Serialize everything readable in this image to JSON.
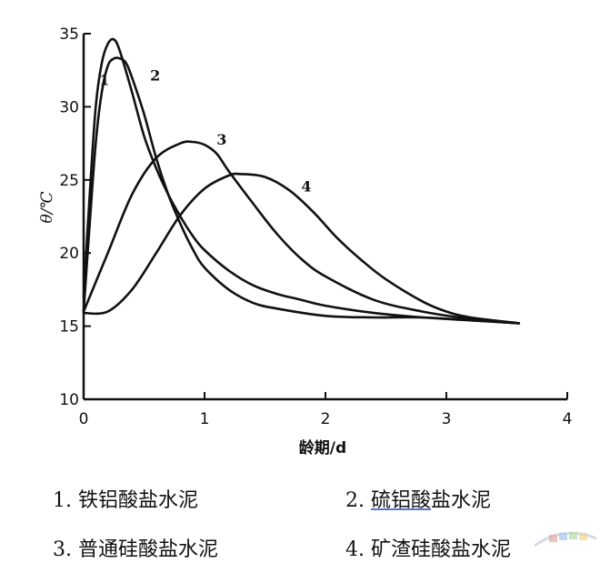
{
  "chart_data": {
    "type": "line",
    "xlabel": "龄期/d",
    "ylabel": "θ/℃",
    "xlim": [
      0,
      4
    ],
    "ylim": [
      10,
      35
    ],
    "x_ticks": [
      "0",
      "1",
      "2",
      "3",
      "4"
    ],
    "y_ticks": [
      "10",
      "15",
      "20",
      "25",
      "30",
      "35"
    ],
    "grid": false,
    "series": [
      {
        "name": "1",
        "points": [
          [
            0,
            17
          ],
          [
            0.05,
            24
          ],
          [
            0.1,
            30
          ],
          [
            0.15,
            33
          ],
          [
            0.2,
            34.3
          ],
          [
            0.25,
            34.6
          ],
          [
            0.3,
            33.8
          ],
          [
            0.4,
            31
          ],
          [
            0.5,
            28
          ],
          [
            0.6,
            25.8
          ],
          [
            0.7,
            24
          ],
          [
            0.8,
            22.5
          ],
          [
            0.9,
            21.2
          ],
          [
            1.0,
            20.2
          ],
          [
            1.2,
            18.8
          ],
          [
            1.4,
            17.8
          ],
          [
            1.6,
            17.2
          ],
          [
            1.8,
            16.8
          ],
          [
            2.0,
            16.4
          ],
          [
            2.4,
            15.9
          ],
          [
            2.8,
            15.6
          ],
          [
            3.2,
            15.4
          ],
          [
            3.6,
            15.2
          ]
        ]
      },
      {
        "name": "2",
        "points": [
          [
            0,
            16
          ],
          [
            0.05,
            22
          ],
          [
            0.1,
            27.5
          ],
          [
            0.15,
            31
          ],
          [
            0.2,
            32.8
          ],
          [
            0.25,
            33.3
          ],
          [
            0.3,
            33.3
          ],
          [
            0.35,
            33
          ],
          [
            0.4,
            32
          ],
          [
            0.5,
            29.5
          ],
          [
            0.6,
            26.5
          ],
          [
            0.7,
            24
          ],
          [
            0.8,
            22
          ],
          [
            0.9,
            20.3
          ],
          [
            1.0,
            19
          ],
          [
            1.2,
            17.5
          ],
          [
            1.4,
            16.6
          ],
          [
            1.6,
            16.2
          ],
          [
            2.0,
            15.7
          ],
          [
            2.4,
            15.6
          ],
          [
            2.8,
            15.6
          ],
          [
            3.2,
            15.4
          ],
          [
            3.6,
            15.2
          ]
        ]
      },
      {
        "name": "3",
        "points": [
          [
            0,
            16
          ],
          [
            0.2,
            20
          ],
          [
            0.4,
            24
          ],
          [
            0.6,
            26.5
          ],
          [
            0.8,
            27.5
          ],
          [
            0.9,
            27.6
          ],
          [
            1.0,
            27.4
          ],
          [
            1.1,
            26.8
          ],
          [
            1.2,
            25.6
          ],
          [
            1.4,
            23.4
          ],
          [
            1.6,
            21.3
          ],
          [
            1.8,
            19.6
          ],
          [
            2.0,
            18.4
          ],
          [
            2.4,
            16.8
          ],
          [
            2.8,
            16
          ],
          [
            3.2,
            15.5
          ],
          [
            3.6,
            15.2
          ]
        ]
      },
      {
        "name": "4",
        "points": [
          [
            0,
            15.9
          ],
          [
            0.2,
            16
          ],
          [
            0.4,
            17.5
          ],
          [
            0.6,
            20
          ],
          [
            0.8,
            22.6
          ],
          [
            1.0,
            24.4
          ],
          [
            1.2,
            25.3
          ],
          [
            1.3,
            25.4
          ],
          [
            1.5,
            25.2
          ],
          [
            1.7,
            24.3
          ],
          [
            1.9,
            22.8
          ],
          [
            2.1,
            21
          ],
          [
            2.3,
            19.5
          ],
          [
            2.5,
            18.2
          ],
          [
            2.8,
            16.7
          ],
          [
            3.0,
            16
          ],
          [
            3.2,
            15.6
          ],
          [
            3.6,
            15.2
          ]
        ]
      }
    ]
  },
  "legend": {
    "item1": "1. 铁铝酸盐水泥",
    "item2_prefix": "2. ",
    "item2_underlined": "硫铝酸",
    "item2_suffix": "盐水泥",
    "item3": "3. 普通硅酸盐水泥",
    "item4": "4. 矿渣硅酸盐水泥"
  },
  "colors": {
    "ink": "#111111",
    "underline": "#5b74c9"
  }
}
